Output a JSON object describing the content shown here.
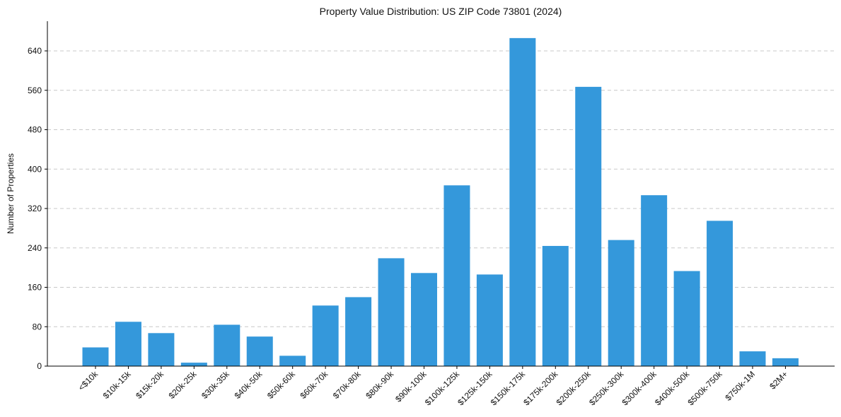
{
  "chart_data": {
    "type": "bar",
    "title": "Property Value Distribution: US ZIP Code 73801 (2024)",
    "xlabel": "",
    "ylabel": "Number of Properties",
    "ylim": [
      0,
      700
    ],
    "yticks": [
      0,
      80,
      160,
      240,
      320,
      400,
      480,
      560,
      640
    ],
    "grid": "y-dashed",
    "bar_color": "#3498db",
    "categories": [
      "<$10k",
      "$10k-15k",
      "$15k-20k",
      "$20k-25k",
      "$30k-35k",
      "$40k-50k",
      "$50k-60k",
      "$60k-70k",
      "$70k-80k",
      "$80k-90k",
      "$90k-100k",
      "$100k-125k",
      "$125k-150k",
      "$150k-175k",
      "$175k-200k",
      "$200k-250k",
      "$250k-300k",
      "$300k-400k",
      "$400k-500k",
      "$500k-750k",
      "$750k-1M",
      "$2M+"
    ],
    "values": [
      38,
      90,
      67,
      7,
      84,
      60,
      21,
      123,
      140,
      219,
      189,
      367,
      186,
      666,
      244,
      567,
      256,
      347,
      193,
      295,
      30,
      16
    ]
  }
}
